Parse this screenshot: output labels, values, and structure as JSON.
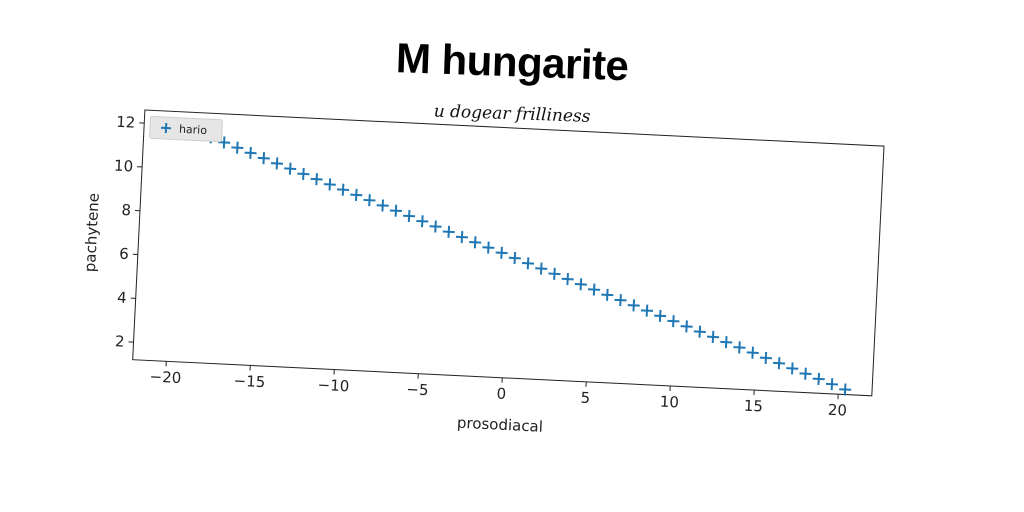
{
  "chart_data": {
    "type": "scatter",
    "title": "M hungarite",
    "subtitle": "u dogear frilliness",
    "xlabel": "prosodiacal",
    "ylabel": "pachytene",
    "xlim": [
      -22,
      22
    ],
    "ylim": [
      1.2,
      12.6
    ],
    "xticks": [
      -20,
      -15,
      -10,
      -5,
      0,
      5,
      10,
      15,
      20
    ],
    "yticks": [
      2,
      4,
      6,
      8,
      10,
      12
    ],
    "grid": false,
    "legend_position": "top-left",
    "marker": "+",
    "series": [
      {
        "name": "hario",
        "color": "#1f77b4",
        "x": [
          -18,
          -17.2,
          -16.4,
          -15.6,
          -14.8,
          -14,
          -13.2,
          -12.4,
          -11.6,
          -10.8,
          -10,
          -9.2,
          -8.4,
          -7.6,
          -6.8,
          -6,
          -5.2,
          -4.4,
          -3.6,
          -2.8,
          -2,
          -1.2,
          -0.4,
          0.4,
          1.2,
          2,
          2.8,
          3.6,
          4.4,
          5.2,
          6,
          6.8,
          7.6,
          8.4,
          9.2,
          10,
          10.8,
          11.6,
          12.4,
          13.2,
          14,
          14.8,
          15.6,
          16.4,
          17.2,
          18,
          18.8,
          19.6,
          20.4
        ],
        "y": [
          11.5,
          11.3,
          11.09,
          10.88,
          10.67,
          10.46,
          10.25,
          10.04,
          9.83,
          9.62,
          9.41,
          9.2,
          8.99,
          8.78,
          8.57,
          8.36,
          8.15,
          7.94,
          7.73,
          7.52,
          7.31,
          7.1,
          6.89,
          6.68,
          6.47,
          6.26,
          6.05,
          5.84,
          5.63,
          5.42,
          5.21,
          5.0,
          4.79,
          4.58,
          4.37,
          4.16,
          3.95,
          3.74,
          3.53,
          3.32,
          3.11,
          2.9,
          2.69,
          2.48,
          2.27,
          2.06,
          1.85,
          1.64,
          1.43
        ]
      }
    ]
  }
}
